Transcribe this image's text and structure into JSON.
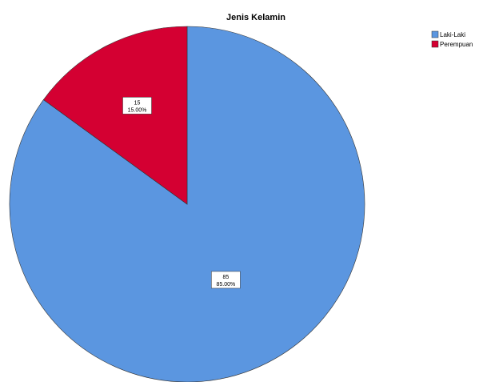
{
  "chart_data": {
    "type": "pie",
    "title": "Jenis Kelamin",
    "slices": [
      {
        "label": "Laki-Laki",
        "count": "85",
        "percent_label": "85.00%",
        "value": 85,
        "color": "#5b96e0"
      },
      {
        "label": "Perempuan",
        "count": "15",
        "percent_label": "15.00%",
        "value": 15,
        "color": "#d40032"
      }
    ],
    "legend_position": "top-right"
  }
}
